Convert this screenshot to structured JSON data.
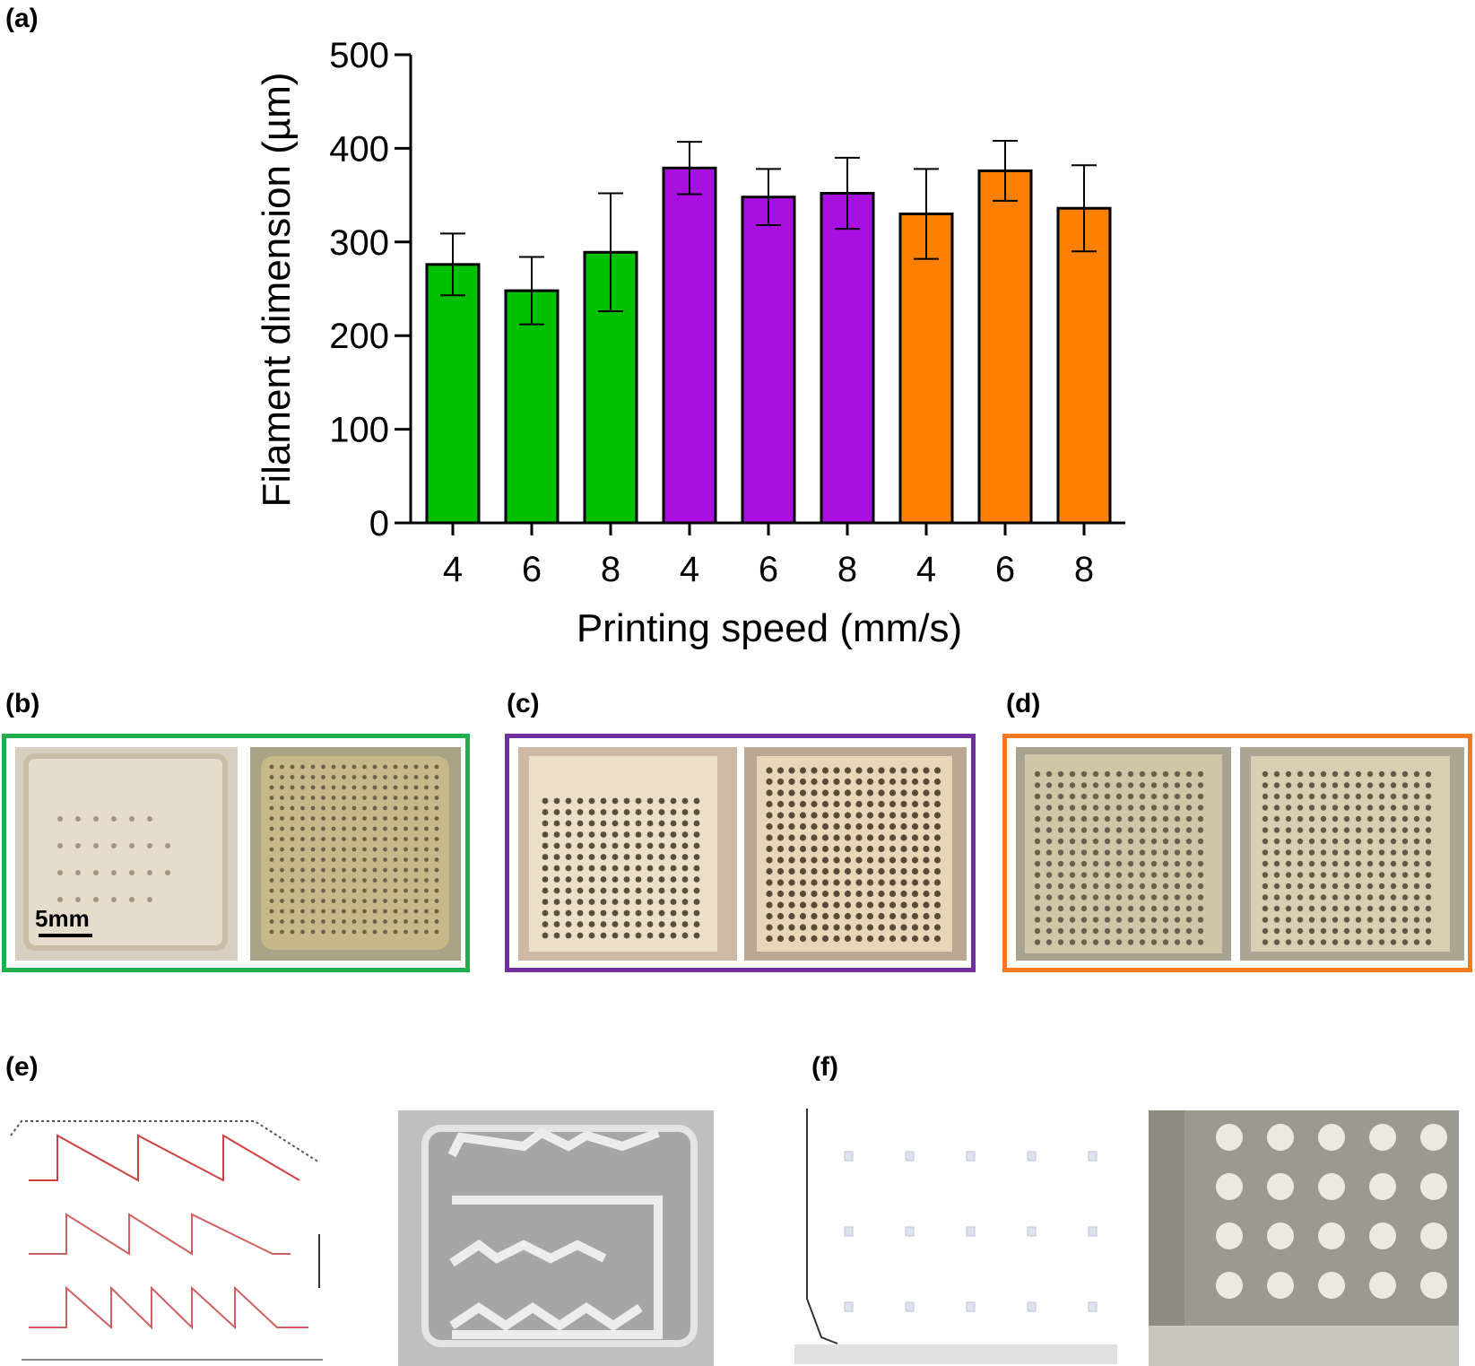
{
  "panels": {
    "a": "(a)",
    "b": "(b)",
    "c": "(c)",
    "d": "(d)",
    "e": "(e)",
    "f": "(f)"
  },
  "scale_bar": "5mm",
  "colors": {
    "green": "#00c000",
    "purple": "#a90fe0",
    "orange": "#ff8000",
    "frame_green": "#1fae4b",
    "frame_purple": "#7030a0",
    "frame_orange": "#f47920"
  },
  "chart_data": {
    "type": "bar",
    "title": "",
    "xlabel": "Printing speed (mm/s)",
    "ylabel": "Filament dimension (µm)",
    "ylim": [
      0,
      500
    ],
    "yticks": [
      0,
      100,
      200,
      300,
      400,
      500
    ],
    "categories": [
      "4",
      "6",
      "8",
      "4",
      "6",
      "8",
      "4",
      "6",
      "8"
    ],
    "values": [
      276,
      248,
      289,
      379,
      348,
      352,
      330,
      376,
      336
    ],
    "errors": [
      33,
      36,
      63,
      28,
      30,
      38,
      48,
      32,
      46
    ],
    "bar_colors": [
      "#00c000",
      "#00c000",
      "#00c000",
      "#a90fe0",
      "#a90fe0",
      "#a90fe0",
      "#ff8000",
      "#ff8000",
      "#ff8000"
    ]
  }
}
